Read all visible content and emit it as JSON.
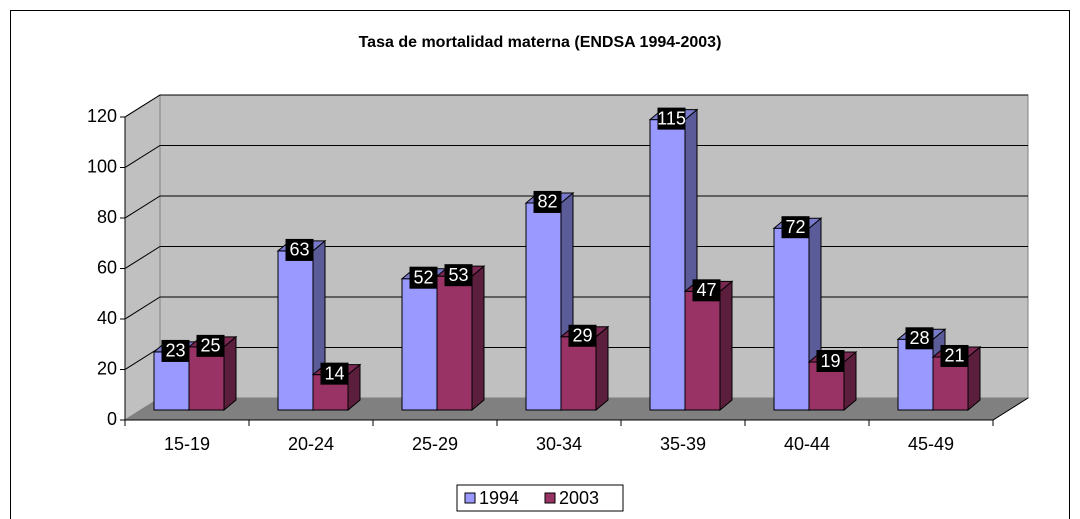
{
  "chart_data": {
    "type": "bar3d",
    "title": "Tasa de mortalidad materna (ENDSA 1994-2003)",
    "categories": [
      "15-19",
      "20-24",
      "25-29",
      "30-34",
      "35-39",
      "40-44",
      "45-49"
    ],
    "series": [
      {
        "name": "1994",
        "color": "#9999ff",
        "values": [
          23,
          63,
          52,
          82,
          115,
          72,
          28
        ]
      },
      {
        "name": "2003",
        "color": "#993366",
        "values": [
          25,
          14,
          53,
          29,
          47,
          19,
          21
        ]
      }
    ],
    "ylim": [
      0,
      120
    ],
    "yticks": [
      0,
      20,
      40,
      60,
      80,
      100,
      120
    ],
    "grid": true,
    "legend": "bottom"
  }
}
